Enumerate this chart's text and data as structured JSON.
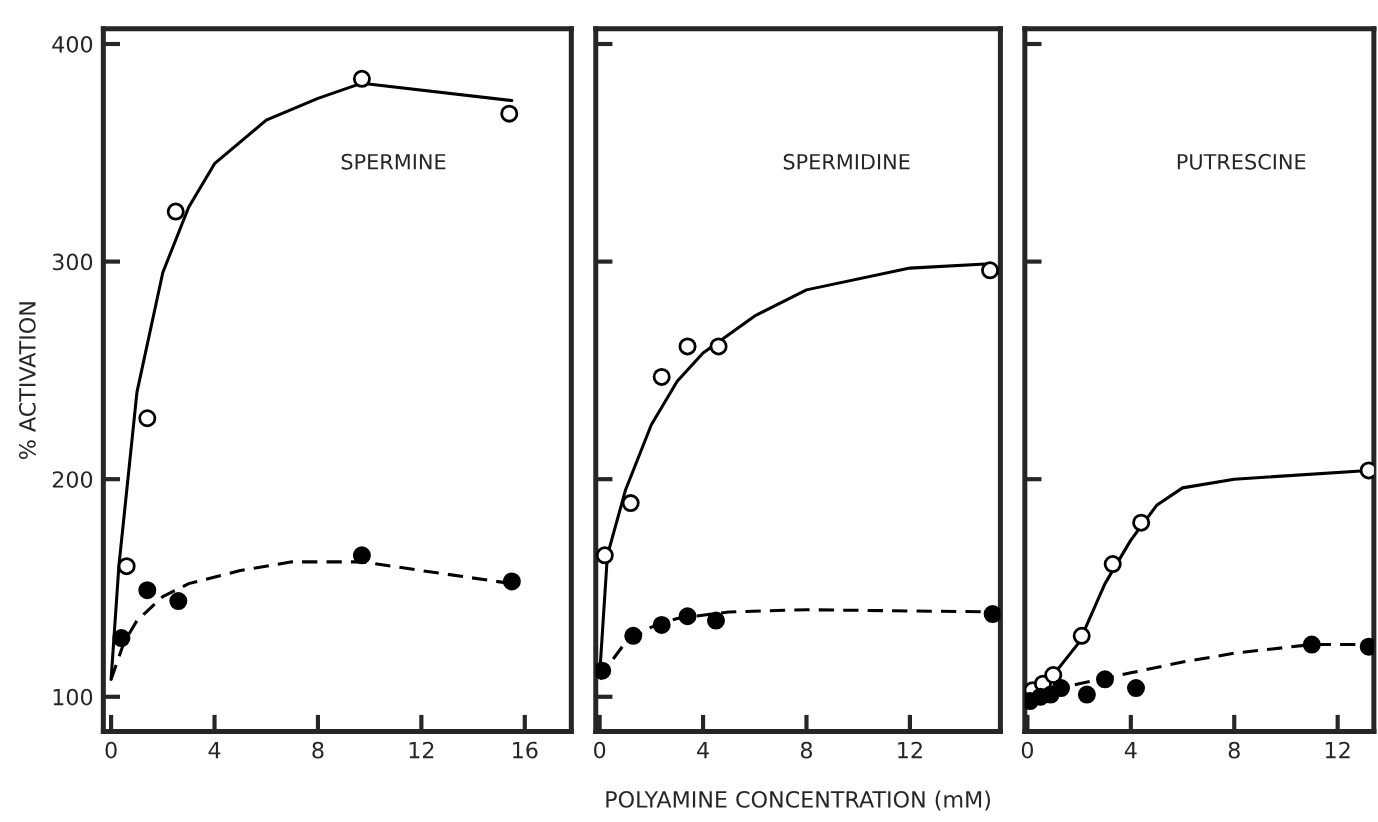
{
  "chart_data": [
    {
      "type": "scatter",
      "ylabel": "% ACTIVATION",
      "annotations": [
        "SPERMINE"
      ],
      "xlim": [
        -0.3,
        17.8
      ],
      "ylim": [
        84,
        407
      ],
      "xticks": [
        0,
        4,
        8,
        12,
        16
      ],
      "yticks": [
        100,
        200,
        300,
        400
      ],
      "grid": false,
      "legend": false,
      "series": [
        {
          "type": "line",
          "color": "#000000",
          "line_style": "solid",
          "marker": "none",
          "x": [
            0,
            0.3,
            1,
            2,
            3,
            4,
            6,
            8,
            9.7,
            15.5
          ],
          "values": [
            108,
            160,
            240,
            295,
            325,
            345,
            365,
            375,
            382,
            374
          ]
        },
        {
          "type": "line",
          "color": "#000000",
          "line_style": "dashed",
          "marker": "none",
          "x": [
            0,
            0.5,
            1,
            2,
            3,
            5,
            7,
            9.7,
            12,
            15.5
          ],
          "values": [
            108,
            125,
            135,
            146,
            152,
            158,
            162,
            162,
            158,
            152
          ]
        },
        {
          "color": "#ffffff",
          "marker": "circle",
          "x": [
            0.6,
            1.4,
            2.5,
            9.7,
            15.4
          ],
          "values": [
            160,
            228,
            323,
            384,
            368
          ]
        },
        {
          "color": "#000000",
          "marker": "circle",
          "x": [
            0.4,
            1.4,
            2.6,
            9.7,
            15.5
          ],
          "values": [
            127,
            149,
            144,
            165,
            153
          ]
        }
      ]
    },
    {
      "type": "scatter",
      "xlabel": "POLYAMINE CONCENTRATION (mM)",
      "annotations": [
        "SPERMIDINE"
      ],
      "xlim": [
        -0.15,
        15.5
      ],
      "ylim": [
        84,
        407
      ],
      "xticks": [
        0,
        4,
        8,
        12
      ],
      "yticks": [
        100,
        200,
        300,
        400
      ],
      "tick_labels": "x",
      "grid": false,
      "legend": false,
      "series": [
        {
          "type": "line",
          "color": "#000000",
          "line_style": "solid",
          "marker": "none",
          "x": [
            0,
            0.3,
            1,
            2,
            3,
            4,
            6,
            8,
            12,
            15.1
          ],
          "values": [
            110,
            165,
            195,
            225,
            245,
            258,
            275,
            287,
            297,
            299
          ]
        },
        {
          "type": "line",
          "color": "#000000",
          "line_style": "dashed",
          "marker": "none",
          "x": [
            0,
            0.5,
            1,
            2,
            3,
            5,
            8,
            15.2
          ],
          "values": [
            108,
            117,
            125,
            132,
            136,
            139,
            140,
            139
          ]
        },
        {
          "color": "#ffffff",
          "marker": "circle",
          "x": [
            0.2,
            1.2,
            2.4,
            3.4,
            4.6,
            15.1
          ],
          "values": [
            165,
            189,
            247,
            261,
            261,
            296
          ]
        },
        {
          "color": "#000000",
          "marker": "circle",
          "x": [
            0.1,
            1.3,
            2.4,
            3.4,
            4.5,
            15.2
          ],
          "values": [
            112,
            128,
            133,
            137,
            135,
            138
          ]
        }
      ]
    },
    {
      "type": "scatter",
      "annotations": [
        "PUTRESCINE"
      ],
      "xlim": [
        -0.1,
        13.4
      ],
      "ylim": [
        84,
        407
      ],
      "xticks": [
        0,
        4,
        8,
        12
      ],
      "yticks": [
        100,
        200,
        300,
        400
      ],
      "tick_labels": "x",
      "grid": false,
      "legend": false,
      "series": [
        {
          "type": "line",
          "color": "#000000",
          "line_style": "solid",
          "marker": "none",
          "x": [
            0,
            1,
            2,
            3,
            4,
            5,
            6,
            8,
            13.2
          ],
          "values": [
            103,
            110,
            125,
            152,
            172,
            188,
            196,
            200,
            204
          ]
        },
        {
          "type": "line",
          "color": "#000000",
          "line_style": "dashed",
          "marker": "none",
          "x": [
            0,
            2,
            4,
            6,
            8,
            11,
            13.2
          ],
          "values": [
            100,
            106,
            111,
            116,
            120,
            124,
            124
          ]
        },
        {
          "color": "#ffffff",
          "marker": "circle",
          "x": [
            0.2,
            0.6,
            1.0,
            2.1,
            3.3,
            4.4,
            13.2
          ],
          "values": [
            103,
            106,
            110,
            128,
            161,
            180,
            204
          ]
        },
        {
          "color": "#000000",
          "marker": "circle",
          "x": [
            0.1,
            0.5,
            0.9,
            1.3,
            2.3,
            3.0,
            4.2,
            11.0,
            13.2
          ],
          "values": [
            98,
            100,
            101,
            104,
            101,
            108,
            104,
            124,
            123
          ]
        }
      ]
    }
  ]
}
